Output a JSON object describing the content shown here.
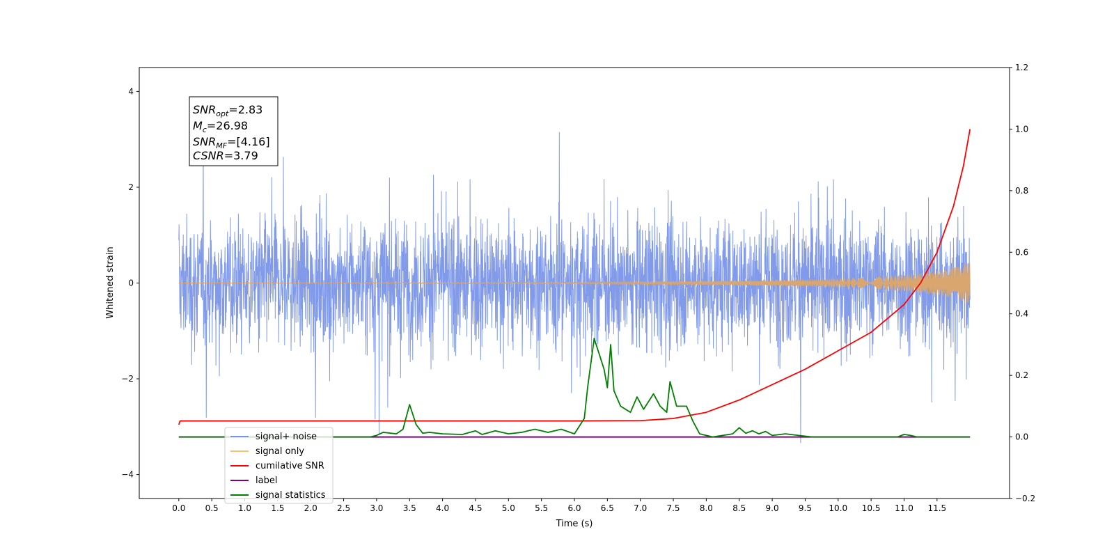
{
  "chart_data": {
    "type": "line",
    "xlabel": "Time (s)",
    "ylabel": "Whitened strain",
    "xlim": [
      -0.6,
      12.6
    ],
    "ylim": [
      -4.5,
      4.5
    ],
    "y2lim": [
      -0.2,
      1.2
    ],
    "x_ticks": [
      "0.0",
      "0.5",
      "1.0",
      "1.5",
      "2.0",
      "2.5",
      "3.0",
      "3.5",
      "4.0",
      "4.5",
      "5.0",
      "5.5",
      "6.0",
      "6.5",
      "7.0",
      "7.5",
      "8.0",
      "8.5",
      "9.0",
      "9.5",
      "10.0",
      "10.5",
      "11.0",
      "11.5"
    ],
    "y_ticks": [
      "4",
      "2",
      "0",
      "−2",
      "−4"
    ],
    "y2_ticks": [
      "1.2",
      "1.0",
      "0.8",
      "0.6",
      "0.4",
      "0.2",
      "0.0",
      "−0.2"
    ],
    "annotation": {
      "snr_opt": {
        "base": "SNR",
        "sub": "opt",
        "value": "=2.83"
      },
      "mc": {
        "base": "M",
        "sub": "c",
        "value": "=26.98"
      },
      "snr_mf": {
        "base": "SNR",
        "sub": "MF",
        "value": "=[4.16]"
      },
      "csnr": {
        "base": "CSNR",
        "value": "=3.79"
      }
    },
    "legend_position": "lower-left",
    "legend": [
      {
        "label": "signal+ noise",
        "color": "#7a95e8"
      },
      {
        "label": "signal only",
        "color": "#f5c56a"
      },
      {
        "label": "cumilative SNR",
        "color": "#ff0000"
      },
      {
        "label": "label",
        "color": "#800080"
      },
      {
        "label": "signal statistics",
        "color": "#008000"
      }
    ],
    "series": [
      {
        "name": "signal+ noise",
        "axis": "left",
        "color": "#7a95e8",
        "x_range": [
          0.0,
          12.0
        ],
        "amplitude_envelope": 3.0,
        "note": "dense noise"
      },
      {
        "name": "signal only",
        "axis": "left",
        "color": "#d8a66e",
        "x_range": [
          0.0,
          12.0
        ],
        "envelope": {
          "x": [
            0,
            6,
            8,
            9,
            10,
            10.5,
            11,
            11.5,
            11.8,
            12.0
          ],
          "y": [
            0.0,
            0.02,
            0.04,
            0.06,
            0.09,
            0.12,
            0.17,
            0.25,
            0.33,
            0.45
          ]
        }
      },
      {
        "name": "cumilative SNR",
        "axis": "right",
        "color": "#ff0000",
        "x": [
          0.0,
          0.02,
          1,
          2,
          3,
          4,
          5,
          6,
          7,
          7.5,
          8,
          8.5,
          9,
          9.5,
          10,
          10.5,
          11,
          11.25,
          11.5,
          11.75,
          11.9,
          12.0
        ],
        "y": [
          0.04,
          0.052,
          0.052,
          0.052,
          0.052,
          0.052,
          0.052,
          0.052,
          0.053,
          0.06,
          0.08,
          0.12,
          0.17,
          0.22,
          0.28,
          0.34,
          0.43,
          0.5,
          0.6,
          0.75,
          0.88,
          1.0
        ]
      },
      {
        "name": "label",
        "axis": "right",
        "color": "#800080",
        "x": [
          0.0,
          12.0
        ],
        "y": [
          0.0,
          0.0
        ]
      },
      {
        "name": "signal statistics",
        "axis": "right",
        "color": "#008000",
        "x": [
          0.0,
          2.9,
          3.0,
          3.1,
          3.3,
          3.4,
          3.5,
          3.6,
          3.7,
          3.8,
          4.0,
          4.3,
          4.5,
          4.6,
          4.8,
          5.0,
          5.2,
          5.4,
          5.6,
          5.8,
          6.0,
          6.15,
          6.2,
          6.3,
          6.45,
          6.5,
          6.55,
          6.6,
          6.7,
          6.85,
          6.95,
          7.05,
          7.2,
          7.3,
          7.4,
          7.45,
          7.55,
          7.7,
          7.8,
          7.9,
          8.0,
          8.1,
          8.4,
          8.5,
          8.6,
          8.7,
          8.8,
          8.9,
          9.0,
          9.2,
          9.4,
          9.6,
          10.9,
          11.0,
          11.1,
          11.2,
          12.0
        ],
        "y": [
          0.0,
          0.0,
          0.005,
          0.015,
          0.01,
          0.025,
          0.105,
          0.04,
          0.012,
          0.015,
          0.01,
          0.008,
          0.02,
          0.008,
          0.02,
          0.01,
          0.015,
          0.025,
          0.015,
          0.025,
          0.01,
          0.06,
          0.16,
          0.32,
          0.22,
          0.16,
          0.3,
          0.15,
          0.1,
          0.08,
          0.13,
          0.09,
          0.14,
          0.1,
          0.08,
          0.18,
          0.1,
          0.1,
          0.05,
          0.01,
          0.005,
          0.0,
          0.01,
          0.03,
          0.012,
          0.02,
          0.01,
          0.018,
          0.005,
          0.01,
          0.005,
          0.0,
          0.0,
          0.008,
          0.005,
          0.0,
          0.0
        ]
      }
    ]
  }
}
